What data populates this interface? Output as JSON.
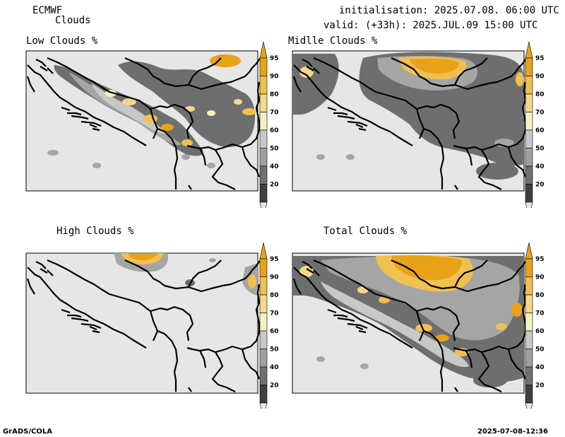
{
  "header": {
    "model": "ECMWF",
    "product": "Clouds",
    "init": "initialisation: 2025.07.08. 06:00 UTC",
    "valid": "valid: (+33h): 2025.JUL.09 15:00 UTC"
  },
  "panels": [
    {
      "title": "Low Clouds %"
    },
    {
      "title": "Midlle Clouds %"
    },
    {
      "title": "High Clouds %"
    },
    {
      "title": "Total Clouds %"
    }
  ],
  "colorbar": {
    "labels": [
      "95",
      "90",
      "80",
      "70",
      "60",
      "50",
      "40",
      "20"
    ],
    "colors": [
      "#e8a21a",
      "#f0c050",
      "#f3d88a",
      "#f5f0c0",
      "#c8c8c8",
      "#a0a0a0",
      "#707070",
      "#404040"
    ],
    "bottom_color": "#e8e8e8"
  },
  "footer": {
    "left": "GrADS/COLA",
    "right": "2025-07-08-12:36"
  }
}
